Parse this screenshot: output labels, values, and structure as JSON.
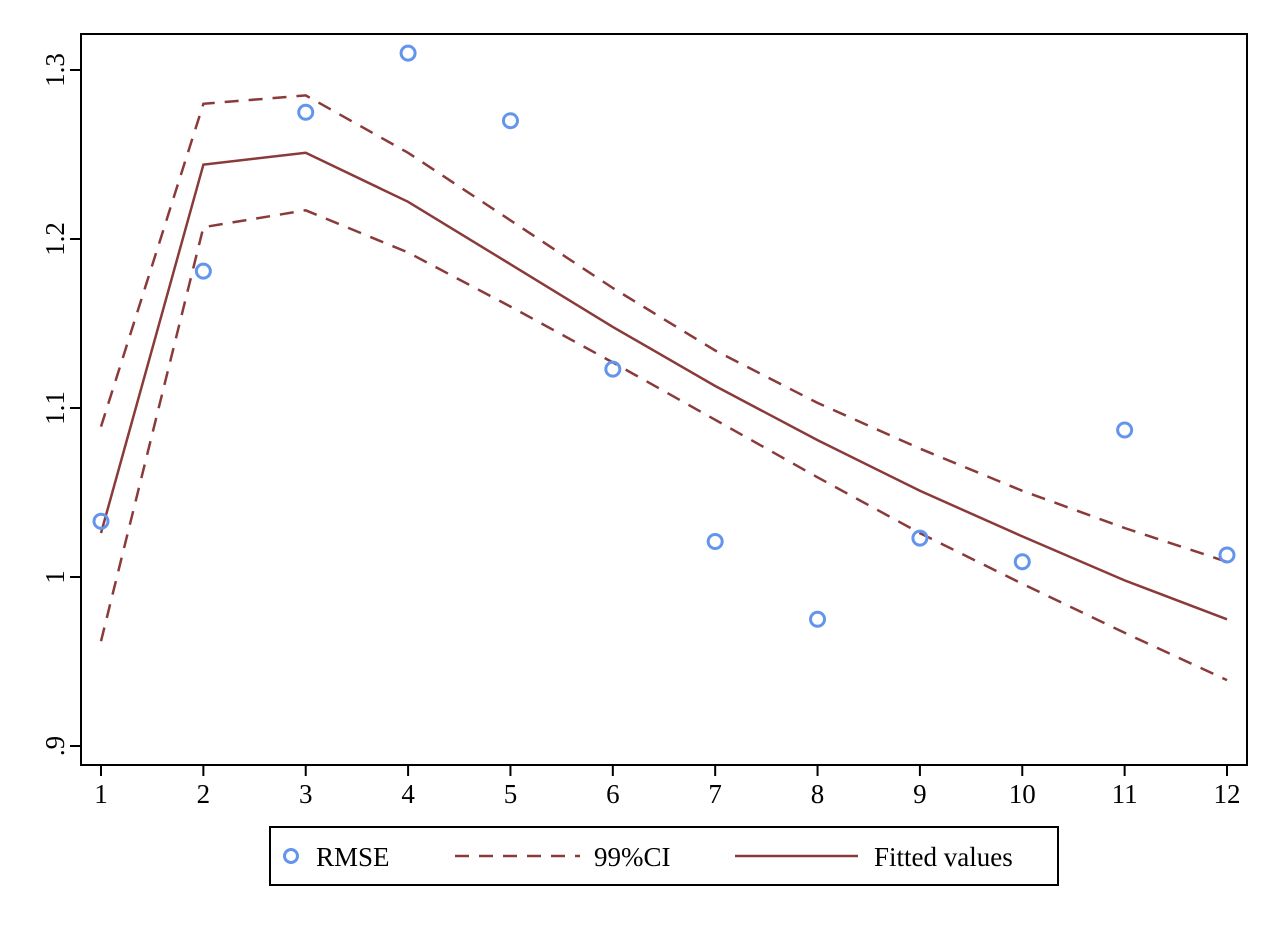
{
  "chart_data": {
    "type": "scatter",
    "title": "",
    "xlabel": "",
    "ylabel": "",
    "xlim": [
      1,
      12
    ],
    "ylim": [
      0.9,
      1.3
    ],
    "x_ticks": [
      "1",
      "2",
      "3",
      "4",
      "5",
      "6",
      "7",
      "8",
      "9",
      "10",
      "11",
      "12"
    ],
    "y_ticks": [
      ".9",
      "1",
      "1.1",
      "1.2",
      "1.3"
    ],
    "grid": false,
    "legend_position": "bottom",
    "series": [
      {
        "name": "RMSE",
        "kind": "scatter",
        "marker": "hollow-circle",
        "color": "#6495ED",
        "x": [
          1,
          2,
          3,
          4,
          5,
          6,
          7,
          8,
          9,
          10,
          11,
          12
        ],
        "values": [
          1.033,
          1.181,
          1.275,
          1.31,
          1.27,
          1.123,
          1.021,
          0.975,
          1.023,
          1.009,
          1.087,
          1.013
        ]
      },
      {
        "name": "99%CI",
        "kind": "band",
        "style": "dashed",
        "color": "#8B3A3A",
        "x": [
          1,
          2,
          3,
          4,
          5,
          6,
          7,
          8,
          9,
          10,
          11,
          12
        ],
        "upper": [
          1.089,
          1.28,
          1.285,
          1.251,
          1.211,
          1.171,
          1.134,
          1.103,
          1.076,
          1.051,
          1.029,
          1.009
        ],
        "lower": [
          0.962,
          1.207,
          1.217,
          1.192,
          1.16,
          1.127,
          1.093,
          1.059,
          1.026,
          0.996,
          0.967,
          0.939
        ]
      },
      {
        "name": "Fitted values",
        "kind": "line",
        "style": "solid",
        "color": "#8B3A3A",
        "x": [
          1,
          2,
          3,
          4,
          5,
          6,
          7,
          8,
          9,
          10,
          11,
          12
        ],
        "values": [
          1.026,
          1.244,
          1.251,
          1.222,
          1.185,
          1.148,
          1.113,
          1.081,
          1.051,
          1.024,
          0.998,
          0.975
        ]
      }
    ]
  }
}
